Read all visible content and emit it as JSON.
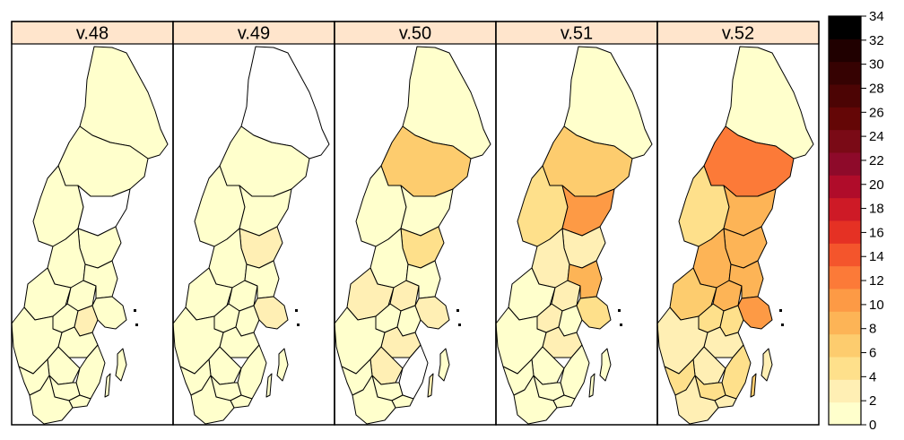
{
  "map": {
    "panels": [
      {
        "label": "v.48",
        "levels": [
          1,
          1,
          1,
          0,
          1,
          1,
          1,
          1,
          1,
          1,
          3,
          1,
          1,
          1,
          1,
          1,
          1,
          1,
          1,
          1,
          1,
          1
        ]
      },
      {
        "label": "v.49",
        "levels": [
          0,
          1,
          1,
          1,
          2,
          1,
          1,
          1,
          1,
          1,
          1,
          1,
          2,
          1,
          1,
          1,
          1,
          1,
          1,
          1,
          1,
          1
        ]
      },
      {
        "label": "v.50",
        "levels": [
          1,
          7,
          1,
          1,
          4,
          1,
          2,
          2,
          1,
          1,
          1,
          2,
          3,
          1,
          3,
          0,
          1,
          1,
          1,
          1,
          1,
          3
        ]
      },
      {
        "label": "v.51",
        "levels": [
          1,
          7,
          4,
          11,
          3,
          2,
          1,
          2,
          8,
          2,
          1,
          3,
          5,
          1,
          1,
          1,
          1,
          1,
          1,
          1,
          1,
          1
        ]
      },
      {
        "label": "v.52",
        "levels": [
          1,
          13,
          4,
          9,
          8,
          9,
          7,
          8,
          8,
          5,
          5,
          3,
          11,
          2,
          3,
          4,
          5,
          5,
          3,
          3,
          3,
          7
        ]
      }
    ],
    "colors": {
      "palette": [
        "#ffffcc",
        "#ffefb4",
        "#fee08b",
        "#fdcc6e",
        "#fdb456",
        "#fd9a45",
        "#fc7a38",
        "#f4552c",
        "#e53124",
        "#ce1a26",
        "#b00c2a",
        "#8e0a2a",
        "#7a0a16",
        "#640606",
        "#4c0404",
        "#360202",
        "#200000",
        "#000000"
      ],
      "zero": "#ffffff",
      "panel_header": "#ffe5cc"
    },
    "legend": {
      "ticks": [
        "0",
        "2",
        "4",
        "6",
        "8",
        "10",
        "12",
        "14",
        "16",
        "18",
        "20",
        "22",
        "24",
        "26",
        "28",
        "30",
        "32",
        "34"
      ],
      "min": 0,
      "max": 34
    }
  }
}
